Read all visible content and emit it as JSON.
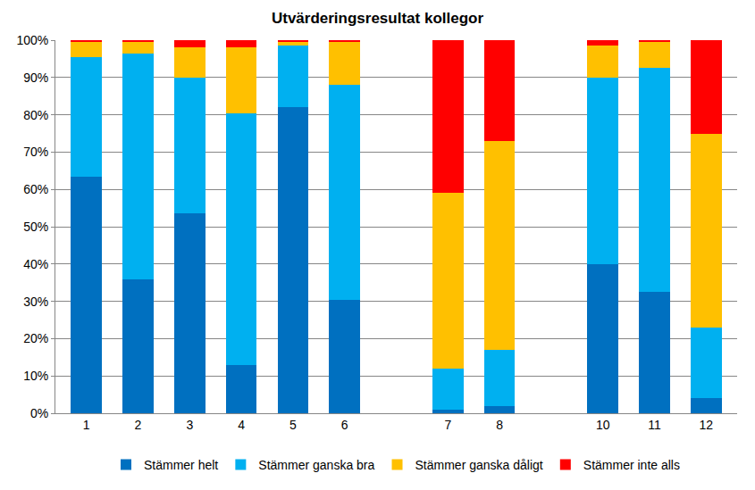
{
  "chart_data": {
    "type": "bar",
    "title": "Utvärderingsresultat kollegor",
    "stacked": true,
    "grid": true,
    "legend": "bottom",
    "categories": [
      "1",
      "2",
      "3",
      "4",
      "5",
      "6",
      null,
      "7",
      "8",
      null,
      "10",
      "11",
      "12"
    ],
    "series": [
      {
        "name": "Stämmer helt",
        "color": "#0070C0",
        "values": [
          63.5,
          36,
          53.5,
          13,
          82,
          30.5,
          null,
          1,
          2,
          null,
          40,
          32.5,
          4
        ]
      },
      {
        "name": "Stämmer ganska bra",
        "color": "#00B0F0",
        "values": [
          32,
          60.5,
          36.5,
          67.5,
          16.5,
          57.5,
          null,
          11,
          15,
          null,
          50,
          60,
          19
        ]
      },
      {
        "name": "Stämmer ganska dåligt",
        "color": "#FFC000",
        "values": [
          4,
          3,
          8,
          17.5,
          1,
          11.5,
          null,
          47,
          56,
          null,
          8.5,
          7,
          52
        ]
      },
      {
        "name": "Stämmer inte alls",
        "color": "#FF0000",
        "values": [
          0.5,
          0.5,
          2,
          2,
          0.5,
          0.5,
          null,
          41,
          27,
          null,
          1.5,
          0.5,
          25
        ]
      }
    ],
    "ylim": [
      0,
      100
    ],
    "yticks": [
      {
        "value": 0,
        "label": "0%"
      },
      {
        "value": 10,
        "label": "10%"
      },
      {
        "value": 20,
        "label": "20%"
      },
      {
        "value": 30,
        "label": "30%"
      },
      {
        "value": 40,
        "label": "40%"
      },
      {
        "value": 50,
        "label": "50%"
      },
      {
        "value": 60,
        "label": "60%"
      },
      {
        "value": 70,
        "label": "70%"
      },
      {
        "value": 80,
        "label": "80%"
      },
      {
        "value": 90,
        "label": "90%"
      },
      {
        "value": 100,
        "label": "100%"
      }
    ]
  }
}
